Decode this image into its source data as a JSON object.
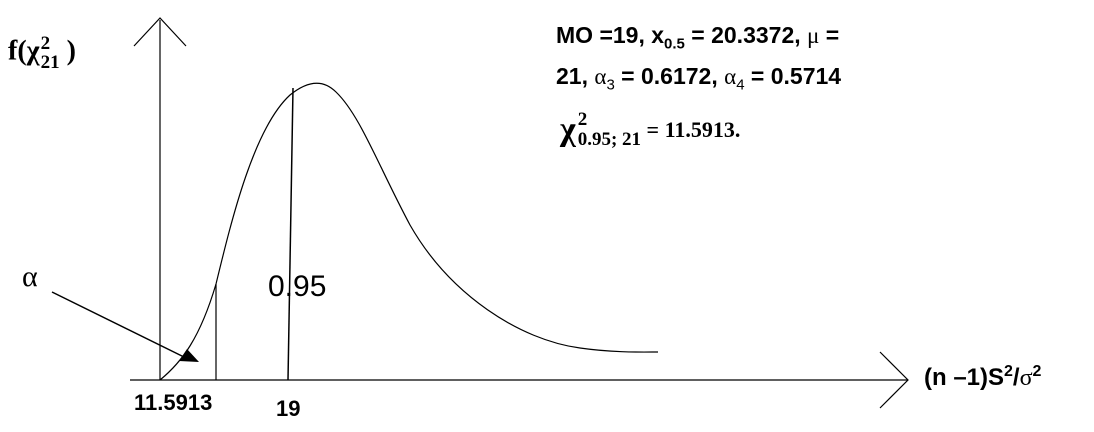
{
  "y_axis_label": {
    "base": "f(",
    "chi": "χ",
    "sup": "2",
    "sub": "21",
    "close": " )"
  },
  "x_axis_label": {
    "a": "(n –1)S",
    "sup1": "2",
    "b": "/",
    "sigma": "σ",
    "sup2": "2"
  },
  "x_ticks": {
    "left": "11.5913",
    "mode": "19"
  },
  "alpha_label": "α",
  "area_label": "0.95",
  "stats": {
    "line1_a": "MO =19, x",
    "line1_sub": "0.5",
    "line1_b": " = 20.3372, ",
    "line1_mu": "μ",
    "line1_c": " =",
    "line2_a": "21,  ",
    "line2_alpha3": "α",
    "line2_sub3": "3",
    "line2_b": " = 0.6172, ",
    "line2_alpha4": "α",
    "line2_sub4": "4",
    "line2_c": " = 0.5714"
  },
  "critical": {
    "chi": "χ",
    "sup": "2",
    "sub": "0.95; 21",
    "value": " = 11.5913."
  }
}
